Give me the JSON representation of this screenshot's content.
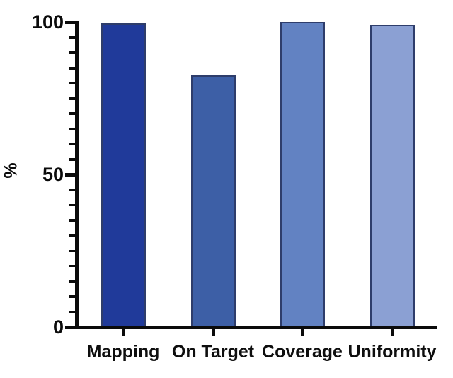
{
  "chart_data": {
    "type": "bar",
    "title": "",
    "categories": [
      "Mapping",
      "On Target",
      "Coverage",
      "Uniformity"
    ],
    "values": [
      99.5,
      82.5,
      100,
      99
    ],
    "bar_colors": [
      "#203a9a",
      "#3d5fa6",
      "#6282c2",
      "#8ba0d3"
    ],
    "bar_border_color": "#2e3d6b",
    "xlabel": "",
    "ylabel": "%",
    "ylim": [
      0,
      100
    ],
    "yticks": [
      0,
      50,
      100
    ],
    "ytick_labels": [
      "0",
      "50",
      "100"
    ],
    "minor_tick_step": 5,
    "grid": false,
    "legend_position": "none",
    "axis_color": "#0b0b0b",
    "background_color": "#ffffff"
  }
}
